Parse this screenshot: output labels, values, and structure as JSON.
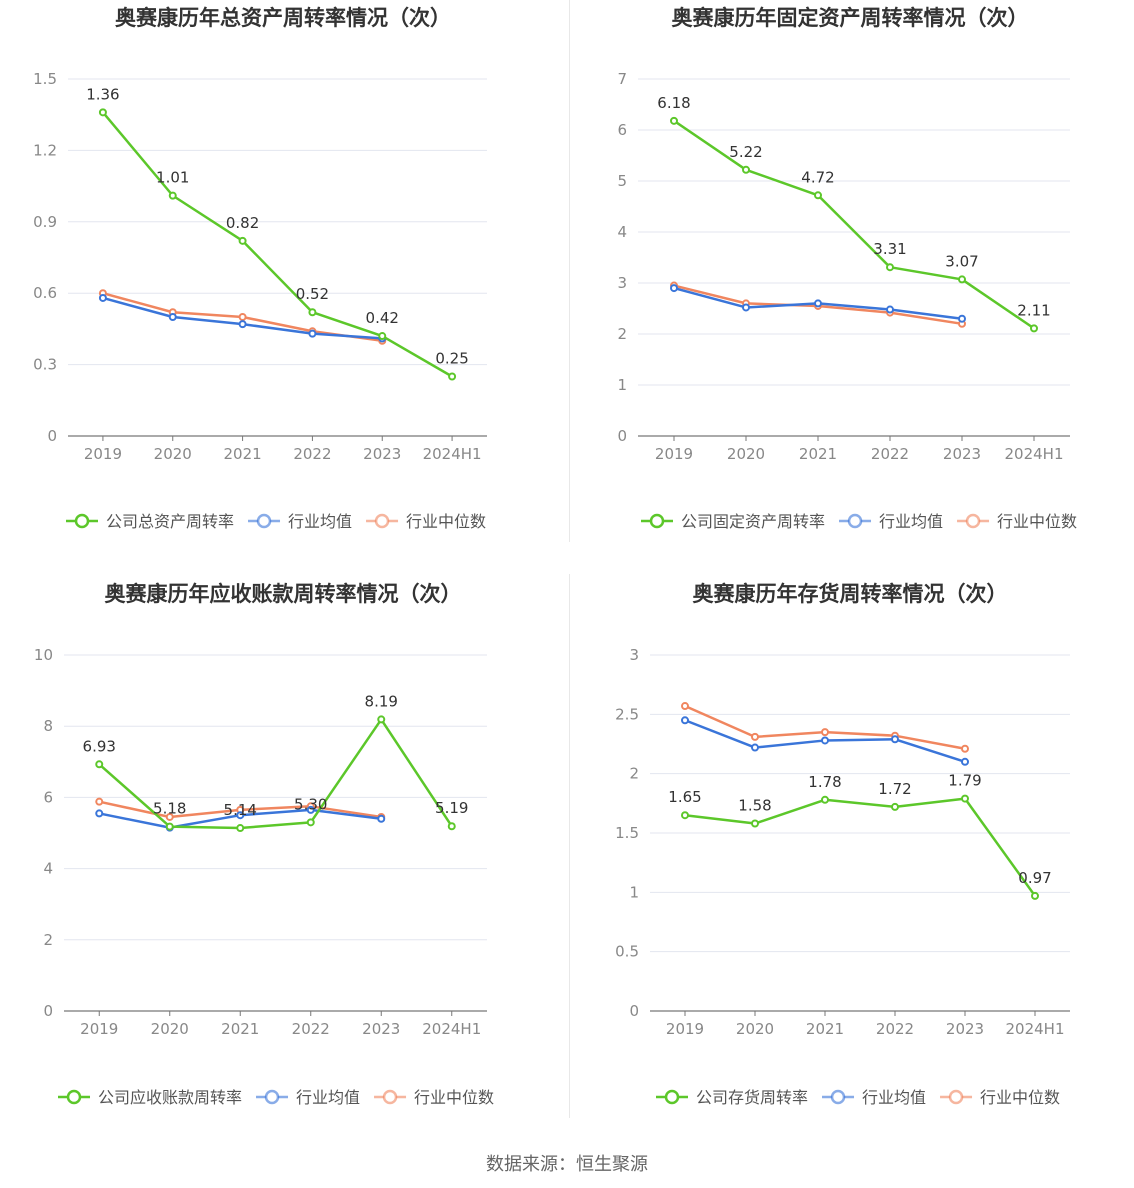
{
  "colors": {
    "company": "#5cc72a",
    "avg": "#3a75d9",
    "median": "#f0865f",
    "grid": "#e3e6ef",
    "axis": "#666666",
    "text": "#333333"
  },
  "footer": "数据来源：恒生聚源",
  "chart_data": [
    {
      "type": "line",
      "title": "奥赛康历年总资产周转率情况（次）",
      "categories": [
        "2019",
        "2020",
        "2021",
        "2022",
        "2023",
        "2024H1"
      ],
      "yticks": [
        "0",
        "0.3",
        "0.6",
        "0.9",
        "1.2",
        "1.5"
      ],
      "ylim": [
        0,
        1.5
      ],
      "grid": true,
      "legend_position": "bottom",
      "series": [
        {
          "name": "公司总资产周转率",
          "key": "company",
          "values": [
            1.36,
            1.01,
            0.82,
            0.52,
            0.42,
            0.25
          ],
          "labels": [
            "1.36",
            "1.01",
            "0.82",
            "0.52",
            "0.42",
            "0.25"
          ]
        },
        {
          "name": "行业均值",
          "key": "avg",
          "values": [
            0.58,
            0.5,
            0.47,
            0.43,
            0.41,
            null
          ]
        },
        {
          "name": "行业中位数",
          "key": "median",
          "values": [
            0.6,
            0.52,
            0.5,
            0.44,
            0.4,
            null
          ]
        }
      ]
    },
    {
      "type": "line",
      "title": "奥赛康历年固定资产周转率情况（次）",
      "categories": [
        "2019",
        "2020",
        "2021",
        "2022",
        "2023",
        "2024H1"
      ],
      "yticks": [
        "0",
        "1",
        "2",
        "3",
        "4",
        "5",
        "6",
        "7"
      ],
      "ylim": [
        0,
        7
      ],
      "grid": true,
      "legend_position": "bottom",
      "series": [
        {
          "name": "公司固定资产周转率",
          "key": "company",
          "values": [
            6.18,
            5.22,
            4.72,
            3.31,
            3.07,
            2.11
          ],
          "labels": [
            "6.18",
            "5.22",
            "4.72",
            "3.31",
            "3.07",
            "2.11"
          ]
        },
        {
          "name": "行业均值",
          "key": "avg",
          "values": [
            2.9,
            2.52,
            2.6,
            2.48,
            2.3,
            null
          ]
        },
        {
          "name": "行业中位数",
          "key": "median",
          "values": [
            2.95,
            2.6,
            2.55,
            2.42,
            2.2,
            null
          ]
        }
      ]
    },
    {
      "type": "line",
      "title": "奥赛康历年应收账款周转率情况（次）",
      "categories": [
        "2019",
        "2020",
        "2021",
        "2022",
        "2023",
        "2024H1"
      ],
      "yticks": [
        "0",
        "2",
        "4",
        "6",
        "8",
        "10"
      ],
      "ylim": [
        0,
        10
      ],
      "grid": true,
      "legend_position": "bottom",
      "series": [
        {
          "name": "公司应收账款周转率",
          "key": "company",
          "values": [
            6.93,
            5.18,
            5.14,
            5.3,
            8.19,
            5.19
          ],
          "labels": [
            "6.93",
            "5.18",
            "5.14",
            "5.30",
            "8.19",
            "5.19"
          ]
        },
        {
          "name": "行业均值",
          "key": "avg",
          "values": [
            5.55,
            5.15,
            5.5,
            5.65,
            5.4,
            null
          ]
        },
        {
          "name": "行业中位数",
          "key": "median",
          "values": [
            5.88,
            5.45,
            5.65,
            5.75,
            5.45,
            null
          ]
        }
      ]
    },
    {
      "type": "line",
      "title": "奥赛康历年存货周转率情况（次）",
      "categories": [
        "2019",
        "2020",
        "2021",
        "2022",
        "2023",
        "2024H1"
      ],
      "yticks": [
        "0",
        "0.5",
        "1",
        "1.5",
        "2",
        "2.5",
        "3"
      ],
      "ylim": [
        0,
        3
      ],
      "grid": true,
      "legend_position": "bottom",
      "series": [
        {
          "name": "公司存货周转率",
          "key": "company",
          "values": [
            1.65,
            1.58,
            1.78,
            1.72,
            1.79,
            0.97
          ],
          "labels": [
            "1.65",
            "1.58",
            "1.78",
            "1.72",
            "1.79",
            "0.97"
          ]
        },
        {
          "name": "行业均值",
          "key": "avg",
          "values": [
            2.45,
            2.22,
            2.28,
            2.29,
            2.1,
            null
          ]
        },
        {
          "name": "行业中位数",
          "key": "median",
          "values": [
            2.57,
            2.31,
            2.35,
            2.32,
            2.21,
            null
          ]
        }
      ]
    }
  ]
}
